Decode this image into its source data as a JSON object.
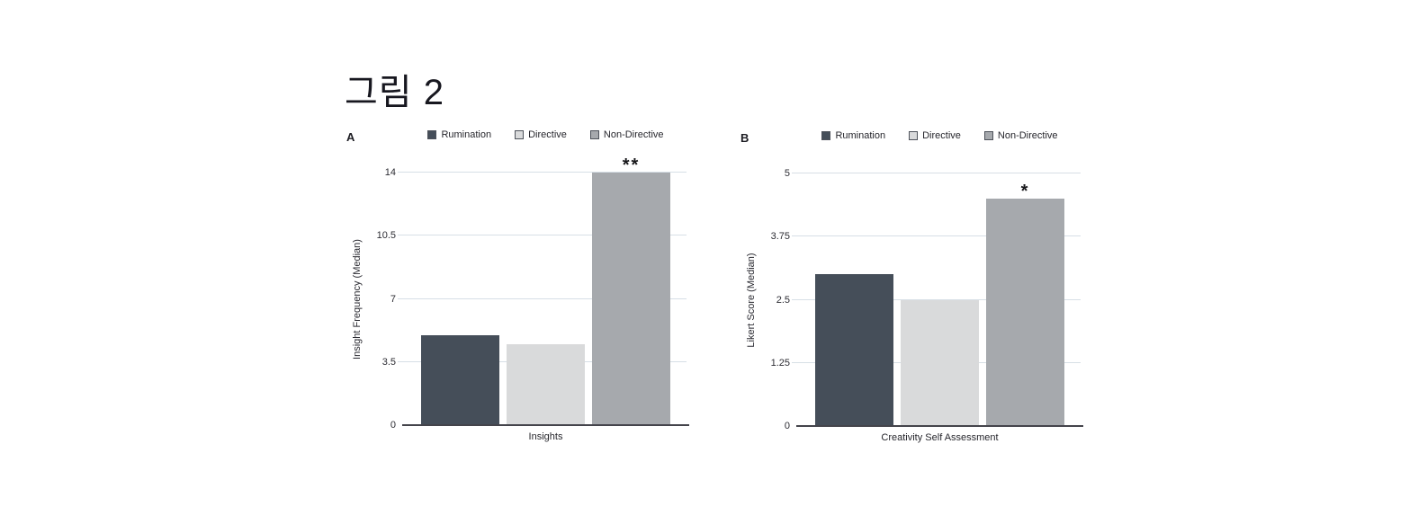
{
  "title": "그림 2",
  "colors": {
    "rumination_bar": "#454e59",
    "directive_bar": "#d9dadb",
    "non_directive_bar": "#a6a9ad",
    "gridline": "#d7dfe6",
    "axis_line": "#44444b",
    "text": "#22222a"
  },
  "legend": {
    "items": [
      {
        "label": "Rumination",
        "color": "#454e59"
      },
      {
        "label": "Directive",
        "color": "#d9dadb"
      },
      {
        "label": "Non-Directive",
        "color": "#a6a9ad"
      }
    ]
  },
  "chart_data": [
    {
      "type": "bar",
      "panel": "A",
      "title": "",
      "categories": [
        "Rumination",
        "Directive",
        "Non-Directive"
      ],
      "values": [
        5,
        4.5,
        14
      ],
      "xlabel": "Insights",
      "ylabel": "Insight Frequency (Median)",
      "ylim": [
        0,
        14
      ],
      "yticks": [
        0,
        3.5,
        7,
        10.5,
        14
      ],
      "ytick_labels": [
        "0",
        "3.5",
        "7",
        "10.5",
        "14"
      ],
      "grid": true,
      "legend_position": "top",
      "significance": {
        "category": "Non-Directive",
        "marker": "**"
      }
    },
    {
      "type": "bar",
      "panel": "B",
      "title": "",
      "categories": [
        "Rumination",
        "Directive",
        "Non-Directive"
      ],
      "values": [
        3,
        2.5,
        4.5
      ],
      "xlabel": "Creativity Self Assessment",
      "ylabel": "Likert Score (Median)",
      "ylim": [
        0,
        5
      ],
      "yticks": [
        0,
        1.25,
        2.5,
        3.75,
        5
      ],
      "ytick_labels": [
        "0",
        "1.25",
        "2.5",
        "3.75",
        "5"
      ],
      "grid": true,
      "legend_position": "top",
      "significance": {
        "category": "Non-Directive",
        "marker": "*"
      }
    }
  ]
}
